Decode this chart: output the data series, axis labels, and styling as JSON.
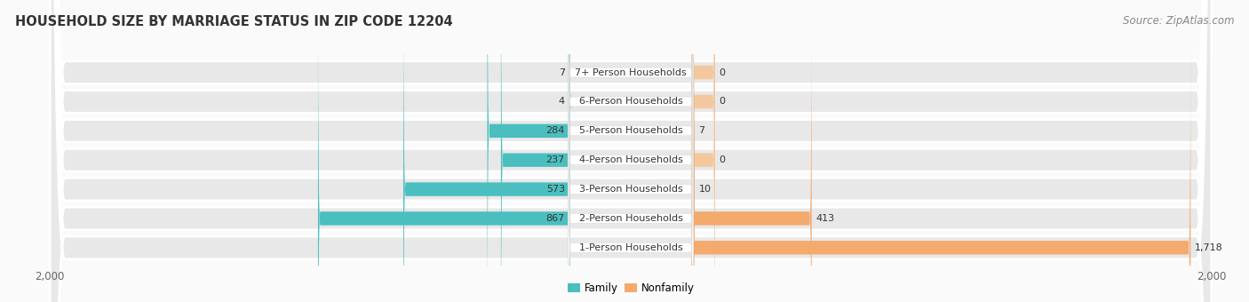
{
  "title": "HOUSEHOLD SIZE BY MARRIAGE STATUS IN ZIP CODE 12204",
  "source": "Source: ZipAtlas.com",
  "categories": [
    "7+ Person Households",
    "6-Person Households",
    "5-Person Households",
    "4-Person Households",
    "3-Person Households",
    "2-Person Households",
    "1-Person Households"
  ],
  "family_values": [
    7,
    4,
    284,
    237,
    573,
    867,
    0
  ],
  "nonfamily_values": [
    0,
    0,
    7,
    0,
    10,
    413,
    1718
  ],
  "family_color": "#4BBFBF",
  "nonfamily_color": "#F4A96D",
  "family_color_light": "#7DD4D4",
  "nonfamily_color_stub": "#F4C89E",
  "axis_max": 2000,
  "bg_row_color": "#E8E8E8",
  "bg_fig_color": "#FAFAFA",
  "label_bg_color": "#FFFFFF",
  "title_fontsize": 10.5,
  "source_fontsize": 8.5,
  "label_fontsize": 8,
  "value_fontsize": 8,
  "axis_label_fontsize": 8.5,
  "legend_fontsize": 8.5,
  "stub_min": 80
}
